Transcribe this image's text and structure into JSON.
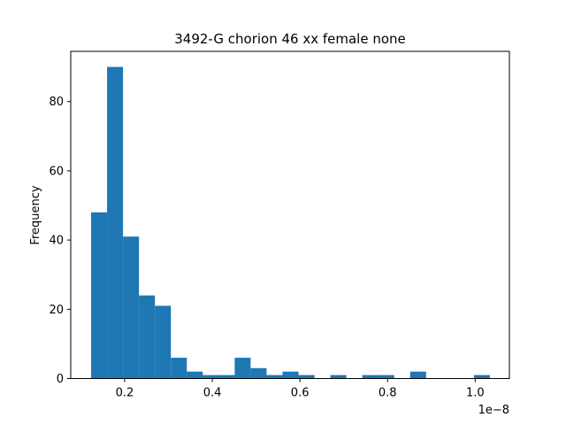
{
  "chart_data": {
    "type": "bar",
    "title": "3492-G chorion 46 xx female none",
    "xlabel": "",
    "ylabel": "Frequency",
    "x_scale_label": "1e−8",
    "bin_edges": [
      0.1235,
      0.1599,
      0.1963,
      0.2327,
      0.2691,
      0.3055,
      0.3419,
      0.3783,
      0.4147,
      0.4511,
      0.4875,
      0.5239,
      0.5603,
      0.5967,
      0.6331,
      0.6695,
      0.7059,
      0.7423,
      0.7787,
      0.8151,
      0.8515,
      0.8879,
      0.9243,
      0.9607,
      0.9971,
      1.0335
    ],
    "values": [
      48,
      90,
      41,
      24,
      21,
      6,
      2,
      1,
      1,
      6,
      3,
      1,
      2,
      1,
      0,
      1,
      0,
      1,
      1,
      0,
      2,
      0,
      0,
      0,
      1
    ],
    "xlim": [
      0.077,
      1.078
    ],
    "ylim": [
      0,
      94.5
    ],
    "xticks": [
      0.2,
      0.4,
      0.6,
      0.8,
      1.0
    ],
    "xtick_labels": [
      "0.2",
      "0.4",
      "0.6",
      "0.8",
      "1.0"
    ],
    "yticks": [
      0,
      20,
      40,
      60,
      80
    ],
    "ytick_labels": [
      "0",
      "20",
      "40",
      "60",
      "80"
    ],
    "bar_color": "#1f77b4",
    "grid": false,
    "legend": "none"
  }
}
